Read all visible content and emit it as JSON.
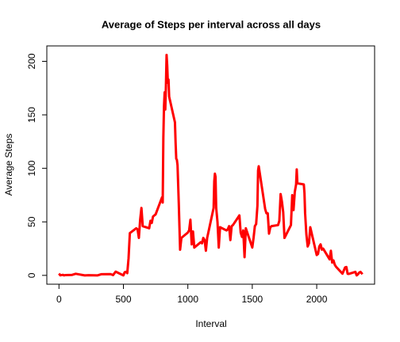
{
  "chart_data": {
    "type": "line",
    "title": "Average of Steps per interval across all days",
    "x_label": "Interval",
    "y_label": "Average Steps",
    "x": [
      0,
      10,
      20,
      30,
      40,
      50,
      100,
      130,
      200,
      230,
      300,
      330,
      400,
      420,
      440,
      500,
      510,
      520,
      530,
      540,
      550,
      600,
      610,
      620,
      630,
      640,
      650,
      700,
      710,
      720,
      730,
      740,
      750,
      800,
      805,
      810,
      815,
      820,
      825,
      830,
      835,
      840,
      845,
      850,
      855,
      900,
      905,
      910,
      915,
      920,
      930,
      940,
      950,
      1000,
      1010,
      1020,
      1030,
      1040,
      1050,
      1100,
      1110,
      1120,
      1130,
      1140,
      1150,
      1200,
      1205,
      1210,
      1215,
      1220,
      1230,
      1240,
      1250,
      1300,
      1310,
      1320,
      1330,
      1340,
      1350,
      1400,
      1410,
      1420,
      1430,
      1440,
      1450,
      1500,
      1510,
      1520,
      1530,
      1540,
      1545,
      1550,
      1600,
      1610,
      1620,
      1630,
      1640,
      1650,
      1700,
      1710,
      1720,
      1730,
      1740,
      1750,
      1800,
      1810,
      1820,
      1830,
      1840,
      1845,
      1850,
      1900,
      1905,
      1910,
      1920,
      1930,
      1940,
      1950,
      2000,
      2010,
      2020,
      2030,
      2040,
      2050,
      2100,
      2110,
      2120,
      2130,
      2140,
      2150,
      2200,
      2210,
      2220,
      2230,
      2240,
      2250,
      2300,
      2310,
      2320,
      2330,
      2340,
      2355
    ],
    "series": [
      {
        "name": "Average Steps",
        "color": "#ff0000",
        "values": [
          1.7,
          0.1,
          0.3,
          0.5,
          0,
          0.3,
          0.4,
          1.5,
          0,
          0.2,
          0,
          1.1,
          1.2,
          0.3,
          3.5,
          0,
          3,
          3.3,
          2.1,
          16,
          39.5,
          44,
          43,
          35,
          52,
          63,
          46,
          44,
          51,
          49,
          55,
          56,
          57,
          73,
          68,
          129,
          158,
          171,
          155,
          177,
          206,
          196,
          180,
          183,
          167,
          143,
          124,
          109,
          108,
          103,
          66,
          24,
          35,
          40,
          42,
          52,
          29,
          41,
          26,
          31,
          30,
          35,
          33,
          23,
          35,
          63,
          88,
          95,
          92,
          63,
          50,
          26,
          45,
          42,
          43,
          46,
          33,
          46,
          47,
          56,
          40,
          36,
          42,
          17,
          44,
          26,
          35,
          46,
          48,
          65,
          98,
          102,
          62,
          58,
          58,
          39,
          45,
          46,
          47,
          51,
          76,
          69,
          59,
          35,
          47,
          75,
          61,
          78,
          85,
          99,
          86,
          85,
          77,
          58,
          38,
          27,
          30,
          45,
          19,
          20,
          27,
          29,
          24,
          25,
          15,
          23,
          12,
          14,
          10,
          8,
          1.6,
          4.6,
          7.4,
          7.8,
          1.5,
          1.4,
          3.3,
          0,
          1,
          2.6,
          3.3,
          1.1
        ]
      }
    ],
    "xlim": [
      -94.2,
      2449.2
    ],
    "ylim": [
      -8.25,
      214.4
    ],
    "xticks": [
      0,
      500,
      1000,
      1500,
      2000
    ],
    "yticks": [
      0,
      50,
      100,
      150,
      200
    ],
    "grid": false
  }
}
